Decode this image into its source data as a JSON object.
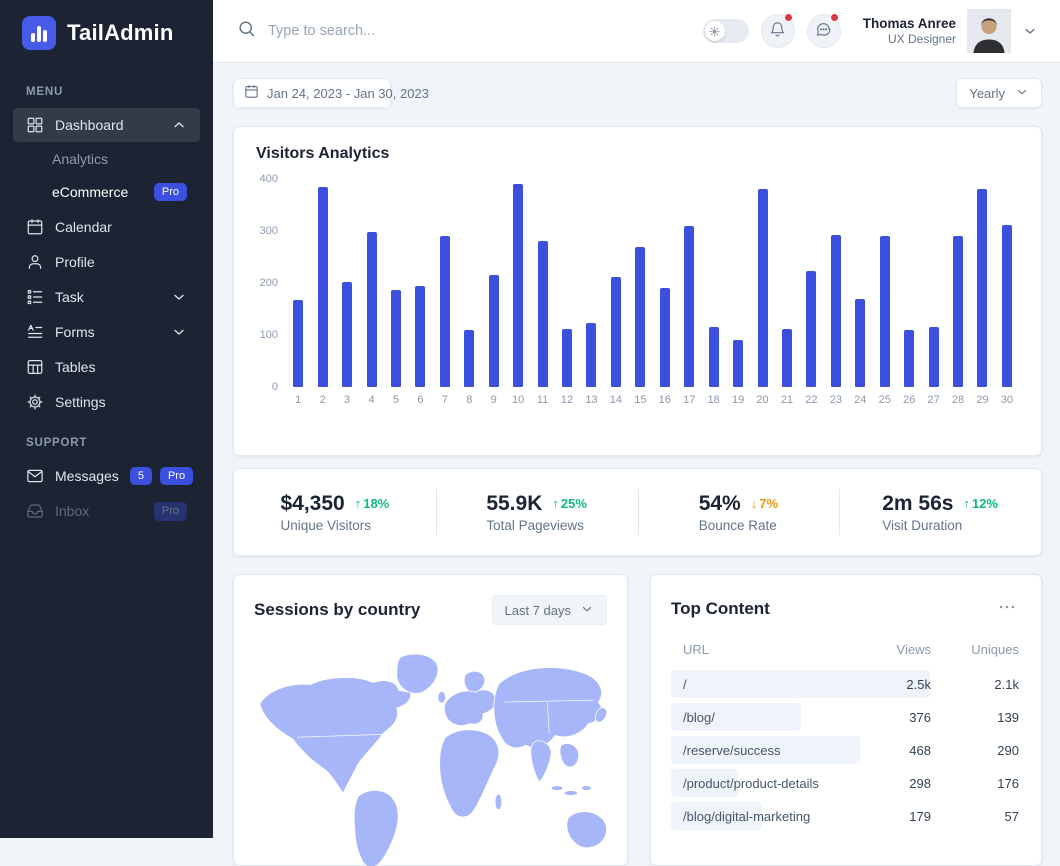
{
  "brand": {
    "name": "TailAdmin"
  },
  "sidebar": {
    "menu_label": "MENU",
    "support_label": "SUPPORT",
    "menu": [
      {
        "label": "Dashboard",
        "icon": "dashboard",
        "active": true,
        "chevron": "up",
        "children": [
          {
            "label": "Analytics",
            "muted": true
          },
          {
            "label": "eCommerce",
            "badge": "Pro"
          }
        ]
      },
      {
        "label": "Calendar",
        "icon": "calendar"
      },
      {
        "label": "Profile",
        "icon": "profile"
      },
      {
        "label": "Task",
        "icon": "task",
        "chevron": "down"
      },
      {
        "label": "Forms",
        "icon": "forms",
        "chevron": "down"
      },
      {
        "label": "Tables",
        "icon": "tables"
      },
      {
        "label": "Settings",
        "icon": "settings"
      }
    ],
    "support": [
      {
        "label": "Messages",
        "icon": "messages",
        "count": "5",
        "badge": "Pro"
      },
      {
        "label": "Inbox",
        "icon": "inbox",
        "badge": "Pro",
        "faded": true
      }
    ]
  },
  "header": {
    "search_placeholder": "Type to search...",
    "user": {
      "name": "Thomas Anree",
      "role": "UX Designer"
    }
  },
  "toolbar": {
    "date_range": "Jan 24, 2023 - Jan 30, 2023",
    "period": "Yearly"
  },
  "chart_data": {
    "type": "bar",
    "title": "Visitors Analytics",
    "categories": [
      "1",
      "2",
      "3",
      "4",
      "5",
      "6",
      "7",
      "8",
      "9",
      "10",
      "11",
      "12",
      "13",
      "14",
      "15",
      "16",
      "17",
      "18",
      "19",
      "20",
      "21",
      "22",
      "23",
      "24",
      "25",
      "26",
      "27",
      "28",
      "29",
      "30"
    ],
    "values": [
      168,
      385,
      201,
      298,
      187,
      195,
      291,
      110,
      215,
      390,
      280,
      112,
      123,
      212,
      270,
      190,
      310,
      115,
      90,
      380,
      112,
      223,
      292,
      170,
      290,
      110,
      115,
      290,
      380,
      312
    ],
    "xlabel": "",
    "ylabel": "",
    "ylim": [
      0,
      400
    ],
    "yticks": [
      0,
      100,
      200,
      300,
      400
    ],
    "grid": false,
    "legend": "none",
    "bar_color": "#3C50E0"
  },
  "stats": [
    {
      "value": "$4,350",
      "label": "Unique Visitors",
      "delta": "18%",
      "direction": "up"
    },
    {
      "value": "55.9K",
      "label": "Total Pageviews",
      "delta": "25%",
      "direction": "up"
    },
    {
      "value": "54%",
      "label": "Bounce Rate",
      "delta": "7%",
      "direction": "down"
    },
    {
      "value": "2m 56s",
      "label": "Visit Duration",
      "delta": "12%",
      "direction": "up"
    }
  ],
  "sessions": {
    "title": "Sessions by country",
    "filter": "Last 7 days"
  },
  "top_content": {
    "title": "Top Content",
    "columns": [
      "URL",
      "Views",
      "Uniques"
    ],
    "rows": [
      {
        "url": "/",
        "views": "2.5k",
        "uniques": "2.1k",
        "bar_pct": 74
      },
      {
        "url": "/blog/",
        "views": "376",
        "uniques": "139",
        "bar_pct": 37
      },
      {
        "url": "/reserve/success",
        "views": "468",
        "uniques": "290",
        "bar_pct": 54
      },
      {
        "url": "/product/product-details",
        "views": "298",
        "uniques": "176",
        "bar_pct": 19
      },
      {
        "url": "/blog/digital-marketing",
        "views": "179",
        "uniques": "57",
        "bar_pct": 26
      }
    ]
  },
  "colors": {
    "primary": "#3C50E0",
    "sidebar_bg": "#1C2434",
    "sidebar_active": "#333A48",
    "green": "#10B981",
    "orange": "#F0950C",
    "alert_red": "#DC3545",
    "map_fill": "#A6B6F8"
  }
}
